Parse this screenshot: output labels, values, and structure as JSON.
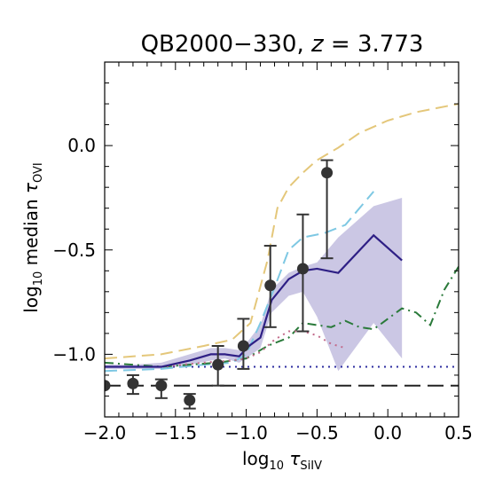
{
  "chart_data": {
    "type": "line",
    "title": "QB2000−330, z = 3.773",
    "title_main": "QB2000−330, ",
    "title_var": "z",
    "title_rest": " = 3.773",
    "xlabel": "log10 τSiIV",
    "ylabel": "log10 median τOVI",
    "xlim": [
      -2.0,
      0.5
    ],
    "ylim": [
      -1.3,
      0.4
    ],
    "xticks": [
      -2.0,
      -1.5,
      -1.0,
      -0.5,
      0.0,
      0.5
    ],
    "xtick_labels": [
      "−2.0",
      "−1.5",
      "−1.0",
      "−0.5",
      "0.0",
      "0.5"
    ],
    "yticks": [
      -1.0,
      -0.5,
      0.0
    ],
    "ytick_labels": [
      "−1.0",
      "−0.5",
      "0.0"
    ],
    "grid": false,
    "legend": "none",
    "observed": {
      "x": [
        -2.0,
        -1.8,
        -1.6,
        -1.4,
        -1.2,
        -1.02,
        -0.83,
        -0.6,
        -0.43
      ],
      "y": [
        -1.15,
        -1.14,
        -1.15,
        -1.22,
        -1.05,
        -0.96,
        -0.67,
        -0.59,
        -0.13
      ],
      "yerr_low": [
        0.0,
        0.05,
        0.06,
        0.04,
        0.1,
        0.11,
        0.2,
        0.3,
        0.41
      ],
      "yerr_high": [
        0.0,
        0.04,
        0.03,
        0.03,
        0.09,
        0.13,
        0.19,
        0.26,
        0.06
      ],
      "color": "#333333"
    },
    "model_median": {
      "x": [
        -2.0,
        -1.8,
        -1.6,
        -1.4,
        -1.25,
        -1.15,
        -1.05,
        -0.98,
        -0.9,
        -0.82,
        -0.7,
        -0.6,
        -0.5,
        -0.35,
        -0.1,
        0.1
      ],
      "y": [
        -1.06,
        -1.06,
        -1.06,
        -1.03,
        -1.0,
        -1.0,
        -1.01,
        -0.96,
        -0.92,
        -0.74,
        -0.64,
        -0.6,
        -0.59,
        -0.61,
        -0.43,
        -0.55
      ],
      "color": "#2e1f85"
    },
    "model_band": {
      "x": [
        -2.0,
        -1.8,
        -1.6,
        -1.4,
        -1.25,
        -1.15,
        -1.05,
        -0.98,
        -0.9,
        -0.82,
        -0.7,
        -0.6,
        -0.5,
        -0.35,
        -0.1,
        0.1
      ],
      "lower": [
        -1.07,
        -1.07,
        -1.07,
        -1.05,
        -1.03,
        -1.02,
        -1.04,
        -1.01,
        -0.97,
        -0.8,
        -0.72,
        -0.7,
        -0.82,
        -1.08,
        -0.85,
        -1.02
      ],
      "upper": [
        -1.05,
        -1.05,
        -1.04,
        -1.0,
        -0.97,
        -0.97,
        -0.98,
        -0.93,
        -0.86,
        -0.69,
        -0.61,
        -0.58,
        -0.56,
        -0.44,
        -0.29,
        -0.25
      ],
      "color": "#8b83c4"
    },
    "curves": [
      {
        "x": [
          -2.0,
          -1.6,
          -1.3,
          -1.1,
          -0.97,
          -0.85,
          -0.78,
          -0.7,
          -0.6,
          -0.5,
          -0.35,
          -0.2,
          0.0,
          0.2,
          0.35,
          0.5
        ],
        "y": [
          -1.02,
          -1.0,
          -0.96,
          -0.93,
          -0.85,
          -0.55,
          -0.3,
          -0.2,
          -0.13,
          -0.07,
          -0.01,
          0.06,
          0.12,
          0.16,
          0.18,
          0.2
        ],
        "color": "#e4c77a",
        "style": "dashed"
      },
      {
        "x": [
          -2.0,
          -1.6,
          -1.3,
          -1.1,
          -1.0,
          -0.9,
          -0.8,
          -0.7,
          -0.6,
          -0.45,
          -0.3,
          -0.2,
          -0.1
        ],
        "y": [
          -1.08,
          -1.07,
          -1.05,
          -1.04,
          -1.0,
          -0.85,
          -0.68,
          -0.5,
          -0.44,
          -0.42,
          -0.38,
          -0.3,
          -0.22
        ],
        "color": "#7ec8e3",
        "style": "dashed"
      },
      {
        "x": [
          -2.0,
          -1.8,
          -1.6,
          -1.4,
          -1.2,
          -1.0,
          -0.85,
          -0.7,
          -0.6,
          -0.5,
          -0.4,
          -0.3,
          -0.2,
          -0.1,
          0.0,
          0.1,
          0.2,
          0.3,
          0.4,
          0.5
        ],
        "y": [
          -1.04,
          -1.05,
          -1.06,
          -1.05,
          -1.04,
          -1.02,
          -0.96,
          -0.92,
          -0.85,
          -0.86,
          -0.87,
          -0.84,
          -0.87,
          -0.88,
          -0.83,
          -0.78,
          -0.8,
          -0.86,
          -0.69,
          -0.58
        ],
        "color": "#2a7a3a",
        "style": "dashdot"
      },
      {
        "x": [
          -2.0,
          -1.6,
          -1.3,
          -1.1,
          -1.0,
          -0.9,
          -0.8,
          -0.7,
          -0.6,
          -0.5,
          -0.4,
          -0.3
        ],
        "y": [
          -1.06,
          -1.06,
          -1.04,
          -1.03,
          -1.02,
          -0.99,
          -0.93,
          -0.89,
          -0.89,
          -0.91,
          -0.95,
          -0.97
        ],
        "color": "#c26a8a",
        "style": "dotted"
      }
    ],
    "hlines": [
      {
        "y": -1.06,
        "color": "#2e2ea0",
        "style": "dotted"
      },
      {
        "y": -1.15,
        "color": "#222222",
        "style": "longdash"
      }
    ]
  }
}
